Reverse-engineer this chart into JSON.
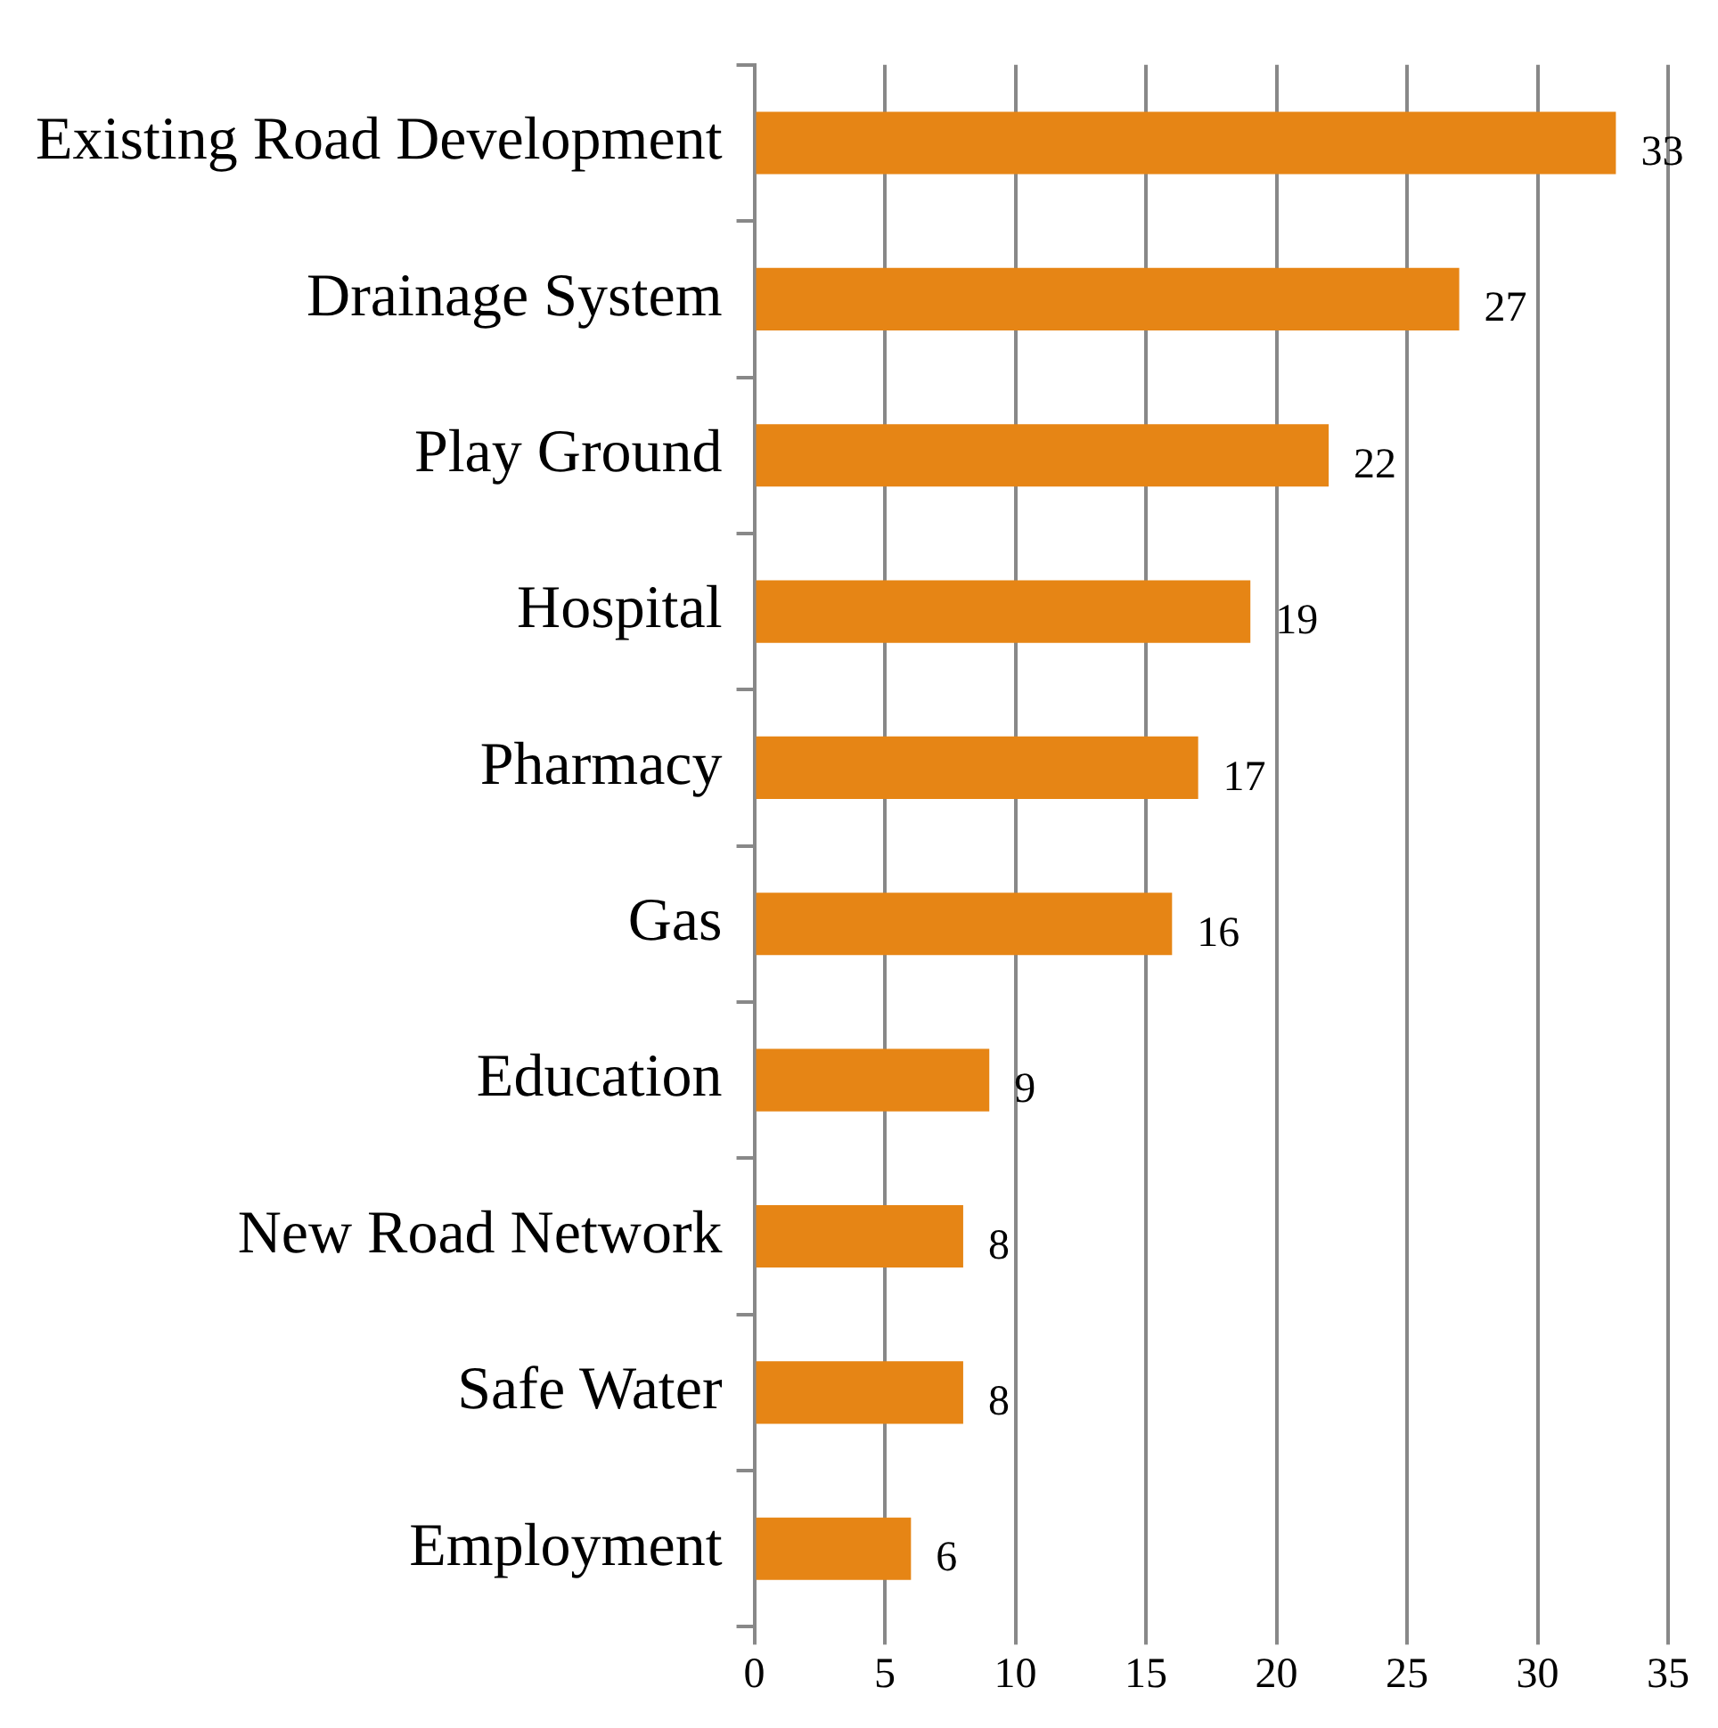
{
  "chart_data": {
    "type": "bar",
    "orientation": "horizontal",
    "categories": [
      "Existing Road Development",
      "Drainage System",
      "Play Ground",
      "Hospital",
      "Pharmacy",
      "Gas",
      "Education",
      "New Road Network",
      "Safe Water",
      "Employment"
    ],
    "values": [
      33,
      27,
      22,
      19,
      17,
      16,
      9,
      8,
      8,
      6
    ],
    "color": "#e68515",
    "xlim": [
      0,
      35
    ],
    "xticks": [
      0,
      5,
      10,
      15,
      20,
      25,
      30,
      35
    ],
    "grid": "x",
    "legend": false,
    "data_labels": true
  }
}
